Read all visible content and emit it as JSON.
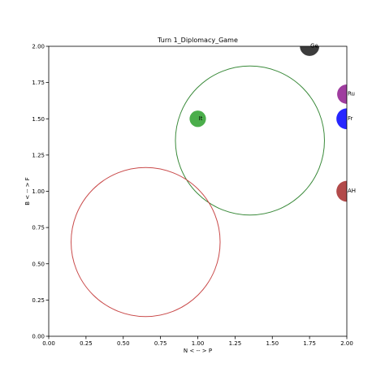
{
  "chart_data": {
    "type": "scatter",
    "title": "Turn 1_Diplomacy_Game",
    "xlabel": "N < -- > P",
    "ylabel": "B < -- > F",
    "xlim": [
      0,
      2
    ],
    "ylim": [
      0,
      2
    ],
    "x_ticks": [
      "0.00",
      "0.25",
      "0.50",
      "0.75",
      "1.00",
      "1.25",
      "1.50",
      "1.75",
      "2.00"
    ],
    "y_ticks": [
      "0.00",
      "0.25",
      "0.50",
      "0.75",
      "1.00",
      "1.25",
      "1.50",
      "1.75",
      "2.00"
    ],
    "grid": false,
    "points": [
      {
        "label": "Ge",
        "x": 1.75,
        "y": 2.0,
        "radius": 0.065,
        "color": "#1a1a1a"
      },
      {
        "label": "Ru",
        "x": 2.0,
        "y": 1.67,
        "radius": 0.065,
        "color": "#8e1a8e"
      },
      {
        "label": "Fr",
        "x": 2.0,
        "y": 1.5,
        "radius": 0.07,
        "color": "#0000ff"
      },
      {
        "label": "It",
        "x": 1.0,
        "y": 1.5,
        "radius": 0.055,
        "color": "#2ca02c"
      },
      {
        "label": "AH",
        "x": 2.0,
        "y": 1.0,
        "radius": 0.07,
        "color": "#a52a2a"
      }
    ],
    "circles": [
      {
        "x": 1.35,
        "y": 1.35,
        "radius": 0.5,
        "color": "#3a8a3a"
      },
      {
        "x": 0.65,
        "y": 0.65,
        "radius": 0.5,
        "color": "#c94a4a"
      }
    ]
  }
}
